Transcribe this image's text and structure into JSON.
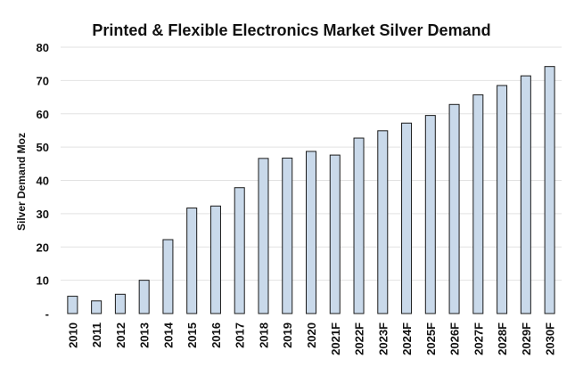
{
  "chart_data": {
    "type": "bar",
    "title": "Printed & Flexible Electronics Market  Silver Demand",
    "xlabel": "",
    "ylabel": "Silver Demand Moz",
    "ylim": [
      0,
      80
    ],
    "yticks": [
      0,
      10,
      20,
      30,
      40,
      50,
      60,
      70,
      80
    ],
    "ytick_labels": [
      "-",
      "10",
      "20",
      "30",
      "40",
      "50",
      "60",
      "70",
      "80"
    ],
    "grid": true,
    "categories": [
      "2010",
      "2011",
      "2012",
      "2013",
      "2014",
      "2015",
      "2016",
      "2017",
      "2018",
      "2019",
      "2020",
      "2021F",
      "2022F",
      "2023F",
      "2024F",
      "2025F",
      "2026F",
      "2027F",
      "2028F",
      "2029F",
      "2030F"
    ],
    "values": [
      5.2,
      3.8,
      5.8,
      10.0,
      22.2,
      31.7,
      32.3,
      37.8,
      46.6,
      46.7,
      48.7,
      47.6,
      52.7,
      54.9,
      57.2,
      59.5,
      62.8,
      65.7,
      68.5,
      71.4,
      74.2
    ],
    "bar_color": "#c9d9ea",
    "bar_edge_color": "#1a1a1a",
    "grid_color": "#e2e2e2"
  }
}
